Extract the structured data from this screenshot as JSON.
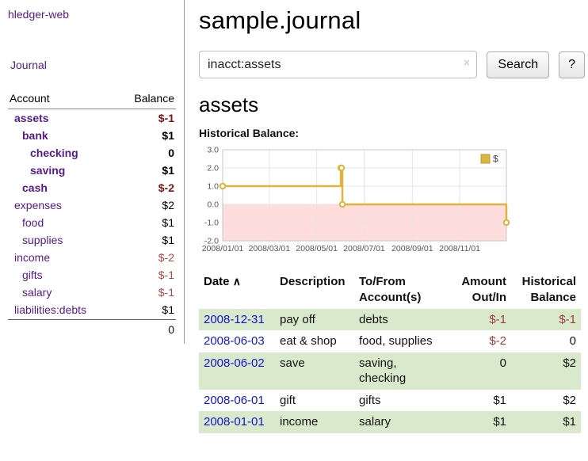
{
  "colors": {
    "link_visited_purple": "#551a8b",
    "link_blue": "#1414d2",
    "negative_strong": "#7d1414",
    "negative_soft": "#a84848",
    "row_highlight_green": "#d8e9cc",
    "chart_line_gold": "#ddb43f",
    "chart_negative_fill": "#ffdddd"
  },
  "sidebar": {
    "app_title": "hledger-web",
    "journal_link": "Journal",
    "accounts": {
      "header_account": "Account",
      "header_balance": "Balance",
      "rows": [
        {
          "name": "assets",
          "balance": "$-1",
          "indent": 1,
          "bold": true,
          "neg": true
        },
        {
          "name": "bank",
          "balance": "$1",
          "indent": 2,
          "bold": true,
          "neg": false
        },
        {
          "name": "checking",
          "balance": "0",
          "indent": 3,
          "bold": true,
          "neg": false
        },
        {
          "name": "saving",
          "balance": "$1",
          "indent": 3,
          "bold": true,
          "neg": false
        },
        {
          "name": "cash",
          "balance": "$-2",
          "indent": 2,
          "bold": true,
          "neg": true
        },
        {
          "name": "expenses",
          "balance": "$2",
          "indent": 1,
          "bold": false,
          "neg": false
        },
        {
          "name": "food",
          "balance": "$1",
          "indent": 2,
          "bold": false,
          "neg": false
        },
        {
          "name": "supplies",
          "balance": "$1",
          "indent": 2,
          "bold": false,
          "neg": false
        },
        {
          "name": "income",
          "balance": "$-2",
          "indent": 1,
          "bold": false,
          "neg": true
        },
        {
          "name": "gifts",
          "balance": "$-1",
          "indent": 2,
          "bold": false,
          "neg": true
        },
        {
          "name": "salary",
          "balance": "$-1",
          "indent": 2,
          "bold": false,
          "neg": true
        },
        {
          "name": "liabilities:debts",
          "balance": "$1",
          "indent": 1,
          "bold": false,
          "neg": false
        }
      ],
      "total": "0"
    }
  },
  "main": {
    "title": "sample.journal",
    "search": {
      "value": "inacct:assets",
      "clear_icon": "×",
      "button_label": "Search",
      "help_label": "?"
    },
    "account_title": "assets",
    "chart_label": "Historical Balance:"
  },
  "chart_data": {
    "type": "line",
    "title": "Historical Balance:",
    "step": true,
    "grid": true,
    "legend_position": "top-right",
    "x_range": [
      "2008-01-01",
      "2008-12-31"
    ],
    "ylim": [
      -2,
      3
    ],
    "y_ticks": [
      3,
      2,
      1,
      0,
      -1,
      -2
    ],
    "x_ticks": [
      "2008/01/01",
      "2008/03/01",
      "2008/05/01",
      "2008/07/01",
      "2008/09/01",
      "2008/11/01"
    ],
    "negative_region_fill": "#ffdddd",
    "series": [
      {
        "name": "$",
        "color": "#ddb43f",
        "points": [
          [
            "2008-01-01",
            1
          ],
          [
            "2008-06-01",
            2
          ],
          [
            "2008-06-02",
            2
          ],
          [
            "2008-06-03",
            0
          ],
          [
            "2008-12-31",
            -1
          ]
        ]
      }
    ]
  },
  "register": {
    "headers": {
      "date": "Date",
      "sort_icon": "∧",
      "description": "Description",
      "account": "To/From Account(s)",
      "amount": "Amount Out/In",
      "balance": "Historical Balance"
    },
    "rows": [
      {
        "date": "2008-12-31",
        "description": "pay off",
        "account": "debts",
        "amount": "$-1",
        "balance": "$-1",
        "amount_neg": true,
        "balance_neg": true,
        "highlight": true
      },
      {
        "date": "2008-06-03",
        "description": "eat & shop",
        "account": "food, supplies",
        "amount": "$-2",
        "balance": "0",
        "amount_neg": true,
        "balance_neg": false,
        "highlight": false
      },
      {
        "date": "2008-06-02",
        "description": "save",
        "account": "saving, checking",
        "amount": "0",
        "balance": "$2",
        "amount_neg": false,
        "balance_neg": false,
        "highlight": true
      },
      {
        "date": "2008-06-01",
        "description": "gift",
        "account": "gifts",
        "amount": "$1",
        "balance": "$2",
        "amount_neg": false,
        "balance_neg": false,
        "highlight": false
      },
      {
        "date": "2008-01-01",
        "description": "income",
        "account": "salary",
        "amount": "$1",
        "balance": "$1",
        "amount_neg": false,
        "balance_neg": false,
        "highlight": true
      }
    ]
  }
}
